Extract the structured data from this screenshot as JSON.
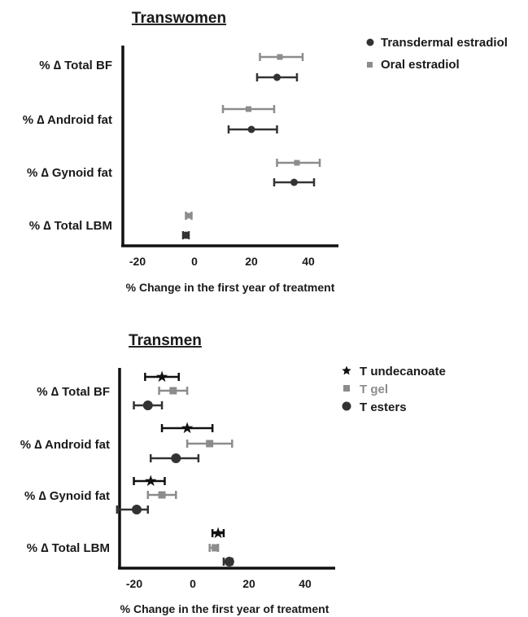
{
  "chart_data": [
    {
      "type": "forest",
      "title": "Transwomen",
      "xlabel": "% Change in the first year of treatment",
      "xlim": [
        -25,
        51
      ],
      "xticks": [
        "-20",
        "0",
        "20",
        "40"
      ],
      "xtick_values": [
        -20,
        0,
        20,
        40
      ],
      "categories": [
        "% ∆ Total BF",
        "% ∆ Android fat",
        "% ∆ Gynoid fat",
        "% ∆ Total LBM"
      ],
      "legend_position": "top-right",
      "series": [
        {
          "name": "Transdermal estradiol",
          "marker": "circle",
          "color": "#333333",
          "estimates": [
            29,
            20,
            35,
            -3
          ],
          "lower": [
            22,
            12,
            28,
            -4
          ],
          "upper": [
            36,
            29,
            42,
            -2
          ]
        },
        {
          "name": "Oral estradiol",
          "marker": "square",
          "color": "#8c8c8c",
          "estimates": [
            30,
            19,
            36,
            -2
          ],
          "lower": [
            23,
            10,
            29,
            -3
          ],
          "upper": [
            38,
            28,
            44,
            -1
          ]
        }
      ]
    },
    {
      "type": "forest",
      "title": "Transmen",
      "xlabel": "% Change in the first year of treatment",
      "xlim": [
        -27,
        51
      ],
      "xticks": [
        "-20",
        "0",
        "20",
        "40"
      ],
      "xtick_values": [
        -20,
        0,
        20,
        40
      ],
      "categories": [
        "% ∆ Total BF",
        "% ∆ Android fat",
        "% ∆ Gynoid fat",
        "% ∆ Total LBM"
      ],
      "legend_position": "top-right",
      "series": [
        {
          "name": "T undecanoate",
          "marker": "star",
          "color": "#111111",
          "estimates": [
            -11,
            -2,
            -15,
            9
          ],
          "lower": [
            -17,
            -11,
            -21,
            7
          ],
          "upper": [
            -5,
            7,
            -10,
            11
          ]
        },
        {
          "name": "T gel",
          "marker": "square",
          "color": "#8c8c8c",
          "estimates": [
            -7,
            6,
            -11,
            8
          ],
          "lower": [
            -12,
            -2,
            -16,
            6
          ],
          "upper": [
            -2,
            14,
            -6,
            9
          ]
        },
        {
          "name": "T esters",
          "marker": "circle",
          "color": "#333333",
          "estimates": [
            -16,
            -6,
            -20,
            13
          ],
          "lower": [
            -21,
            -15,
            -27,
            11
          ],
          "upper": [
            -11,
            2,
            -16,
            14
          ]
        }
      ]
    }
  ]
}
